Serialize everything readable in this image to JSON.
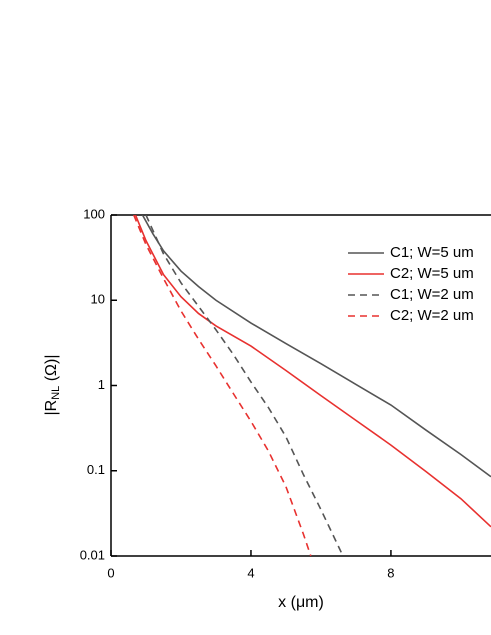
{
  "chart_data": {
    "type": "line",
    "log_y": true,
    "x_label": "x (μm)",
    "y_label": {
      "main": "|R",
      "sub": "NL",
      "rest": " (Ω)|"
    },
    "xlim": [
      0,
      10.86
    ],
    "ylim": [
      0.01,
      100
    ],
    "xticks": [
      0,
      4,
      8
    ],
    "yticks": [
      0.01,
      0.1,
      1,
      10,
      100
    ],
    "legend": "upper right",
    "series": [
      {
        "name": "C1; W=5 um",
        "color": "#555555",
        "dash": false,
        "x": [
          0.9,
          1.2,
          1.5,
          2,
          2.5,
          3,
          4,
          5,
          6,
          7,
          8,
          9,
          10,
          10.86
        ],
        "values": [
          100,
          60,
          38,
          22,
          14.5,
          10,
          5.4,
          3.1,
          1.8,
          1.03,
          0.59,
          0.3,
          0.155,
          0.085
        ]
      },
      {
        "name": "C2; W=5 um",
        "color": "#e8312f",
        "dash": false,
        "x": [
          0.7,
          1,
          1.5,
          2,
          2.5,
          3,
          4,
          5,
          6,
          7,
          8,
          9,
          10,
          10.86
        ],
        "values": [
          100,
          50,
          20,
          11,
          7,
          5,
          2.9,
          1.5,
          0.76,
          0.39,
          0.2,
          0.098,
          0.047,
          0.022
        ]
      },
      {
        "name": "C1; W=2 um",
        "color": "#555555",
        "dash": true,
        "x": [
          1.0,
          1.5,
          2,
          2.5,
          3,
          3.5,
          4,
          4.5,
          5,
          5.5,
          6,
          6.63
        ],
        "values": [
          100,
          35,
          16,
          8.5,
          4.5,
          2.3,
          1.1,
          0.55,
          0.25,
          0.09,
          0.035,
          0.01
        ]
      },
      {
        "name": "C2; W=2 um",
        "color": "#e8312f",
        "dash": true,
        "x": [
          0.65,
          1,
          1.5,
          2,
          2.5,
          3,
          3.5,
          4,
          4.5,
          5,
          5.5,
          5.71
        ],
        "values": [
          100,
          45,
          18,
          7.5,
          3.5,
          1.7,
          0.8,
          0.38,
          0.17,
          0.065,
          0.018,
          0.01
        ]
      }
    ]
  }
}
